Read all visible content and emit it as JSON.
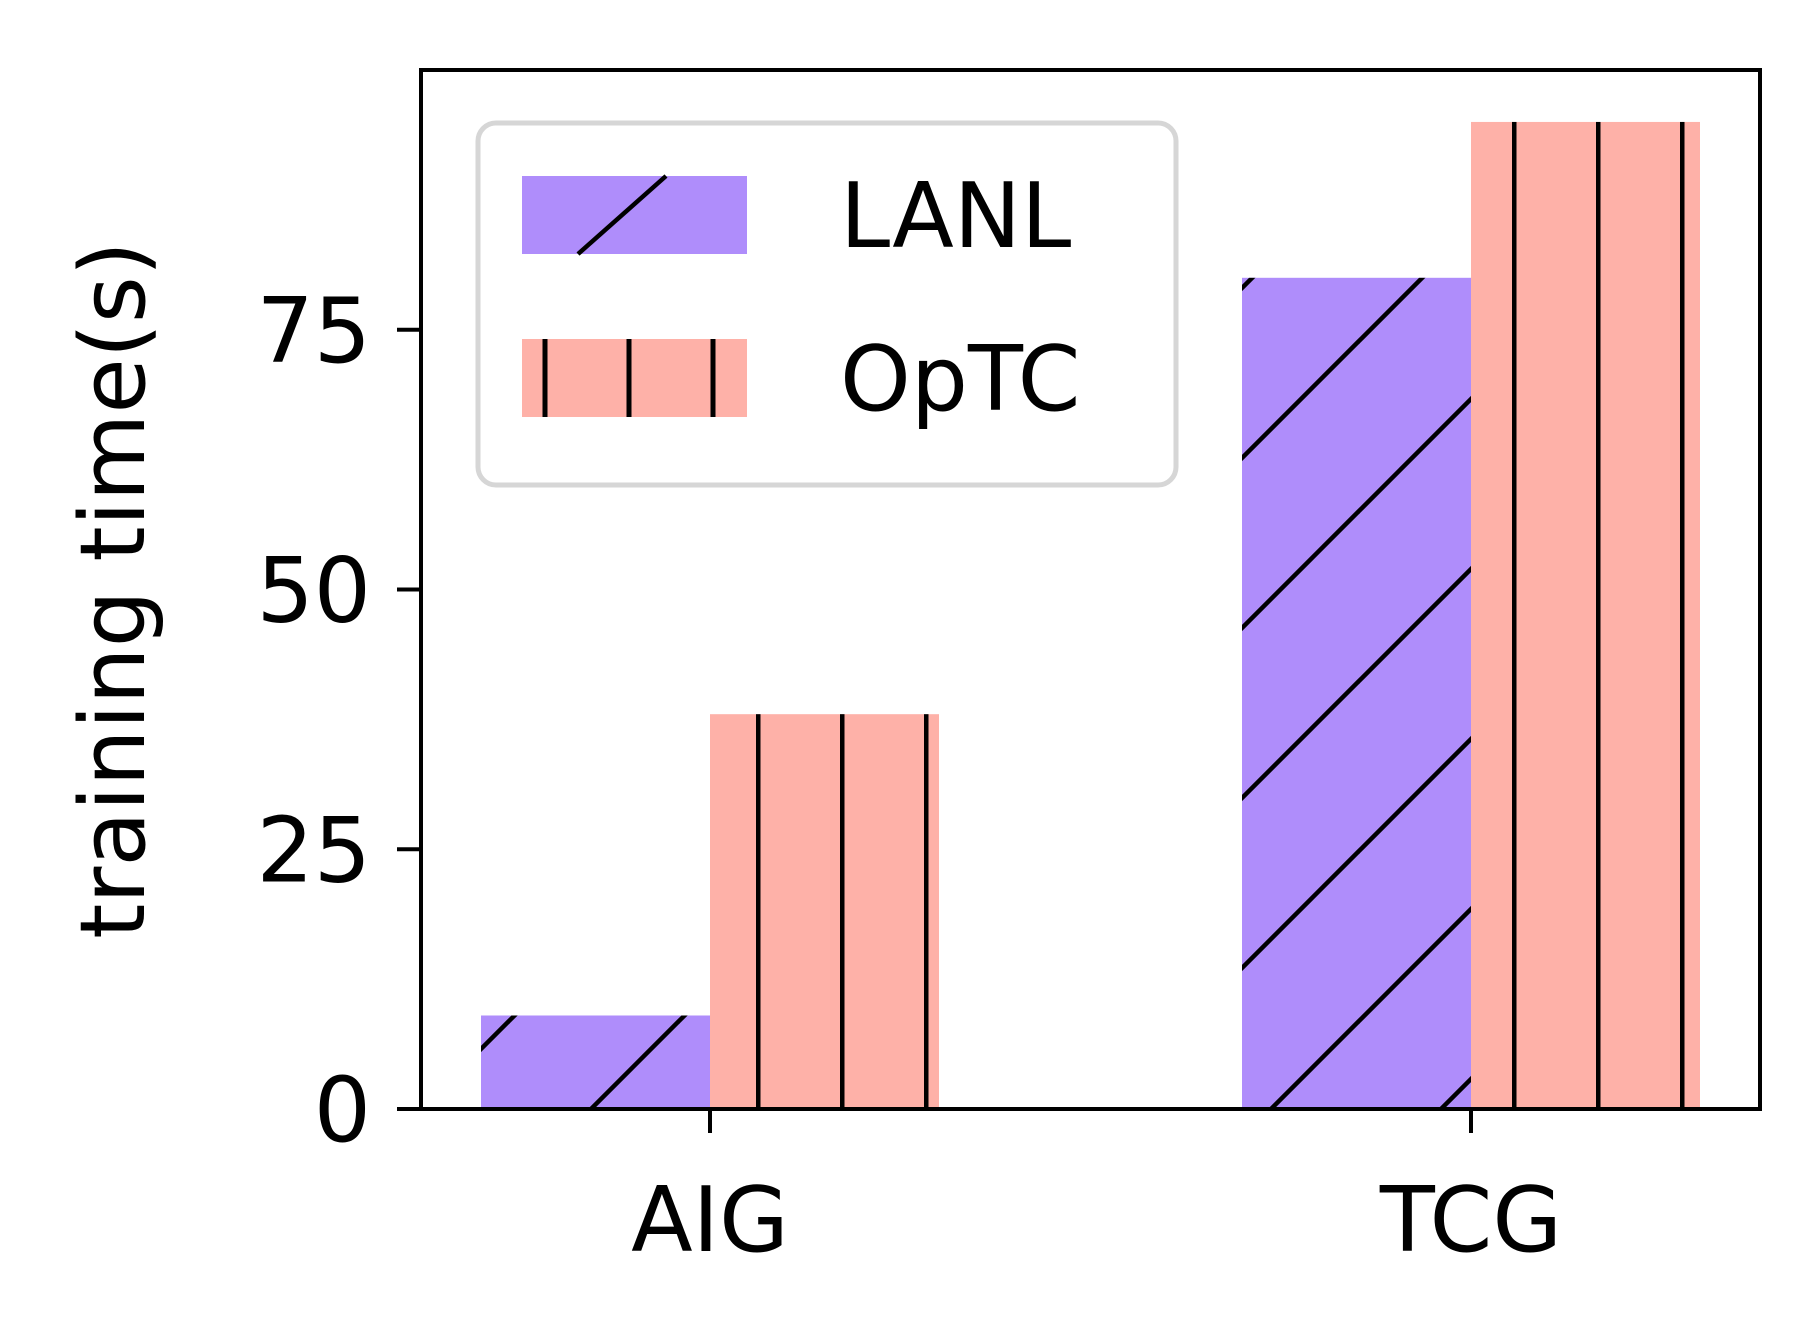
{
  "chart_data": {
    "type": "bar",
    "categories": [
      "AIG",
      "TCG"
    ],
    "series": [
      {
        "name": "LANL",
        "values": [
          9,
          80
        ],
        "color": "#AF8DFB",
        "hatch": "diagonal"
      },
      {
        "name": "OpTC",
        "values": [
          38,
          95
        ],
        "color": "#FEB1A8",
        "hatch": "vertical"
      }
    ],
    "title": "",
    "xlabel": "",
    "ylabel": "training time(s)",
    "ylim": [
      0,
      100
    ],
    "yticks": [
      0,
      25,
      50,
      75
    ],
    "grid": false,
    "legend_position": "top-left"
  }
}
